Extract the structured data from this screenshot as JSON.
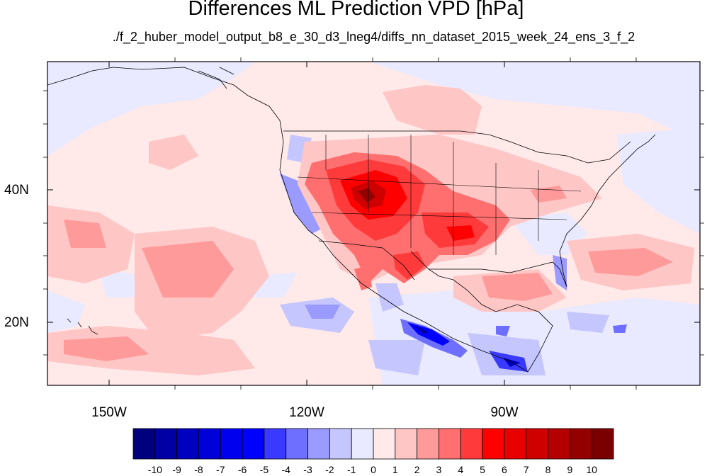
{
  "title": "Differences ML Prediction VPD [hPa]",
  "subtitle": "./f_2_huber_model_output_b8_e_30_d3_lneg4/diffs_nn_dataset_2015_week_24_ens_3_f_2",
  "lat_labels": [
    "40N",
    "20N"
  ],
  "lon_labels": [
    "150W",
    "120W",
    "90W"
  ],
  "colorbar": {
    "labels": [
      "-10",
      "-9",
      "-8",
      "-7",
      "-6",
      "-5",
      "-4",
      "-3",
      "-2",
      "-1",
      "0",
      "1",
      "2",
      "3",
      "4",
      "5",
      "6",
      "7",
      "8",
      "9",
      "10"
    ],
    "colors": [
      "#00007f",
      "#0000a3",
      "#0000c0",
      "#0000d8",
      "#0000ef",
      "#0000ff",
      "#3a3aff",
      "#6f6fff",
      "#9a9aff",
      "#c6c6ff",
      "#e9e9ff",
      "#ffe9e9",
      "#ffc6c6",
      "#ff9a9a",
      "#ff6f6f",
      "#ff3a3a",
      "#ff0000",
      "#e80000",
      "#cf0000",
      "#b40000",
      "#940000",
      "#7a0000"
    ]
  }
}
